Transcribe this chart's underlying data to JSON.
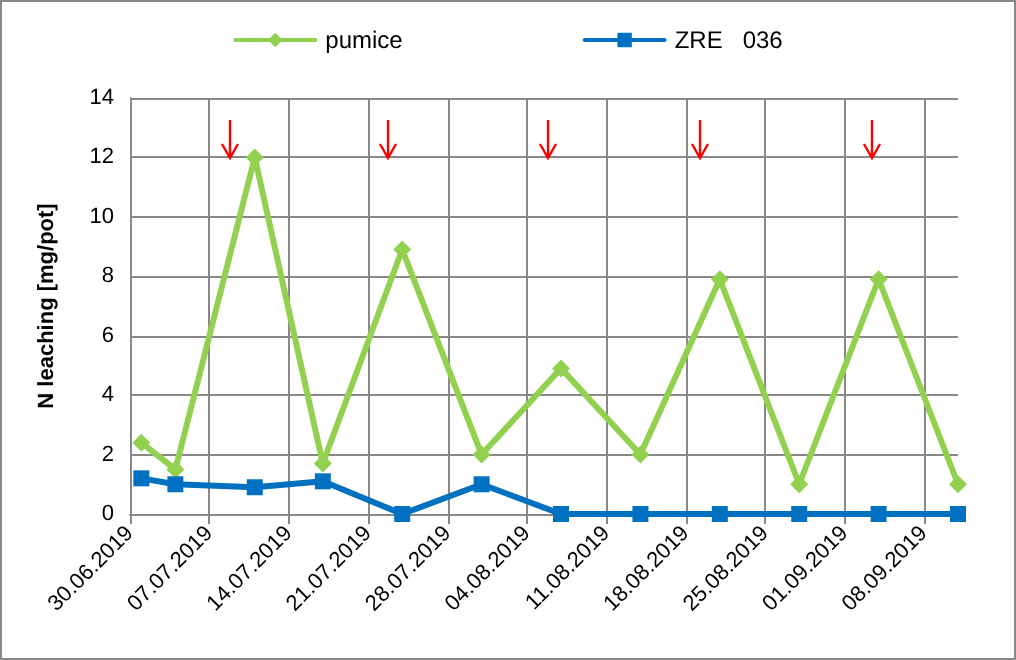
{
  "chart_data": {
    "type": "line",
    "ylabel": "N leaching [mg/pot]",
    "x": [
      "2019-07-01",
      "2019-07-04",
      "2019-07-11",
      "2019-07-17",
      "2019-07-24",
      "2019-07-31",
      "2019-08-07",
      "2019-08-14",
      "2019-08-21",
      "2019-08-28",
      "2019-09-04",
      "2019-09-11"
    ],
    "series": [
      {
        "name": "pumice",
        "color": "#92d050",
        "marker": "diamond",
        "values": [
          2.4,
          1.5,
          12.0,
          1.7,
          8.9,
          2.0,
          4.9,
          2.0,
          7.9,
          1.0,
          7.9,
          1.0
        ]
      },
      {
        "name": "ZRE   036",
        "color": "#0070c0",
        "marker": "square",
        "values": [
          1.2,
          1.0,
          0.9,
          1.1,
          0,
          1.0,
          0,
          0,
          0,
          0,
          0,
          0
        ]
      }
    ],
    "xlim": [
      "2019-06-30",
      "2019-09-11"
    ],
    "xticks": [
      {
        "value": "2019-06-30",
        "label": "30.06.2019"
      },
      {
        "value": "2019-07-07",
        "label": "07.07.2019"
      },
      {
        "value": "2019-07-14",
        "label": "14.07.2019"
      },
      {
        "value": "2019-07-21",
        "label": "21.07.2019"
      },
      {
        "value": "2019-07-28",
        "label": "28.07.2019"
      },
      {
        "value": "2019-08-04",
        "label": "04.08.2019"
      },
      {
        "value": "2019-08-11",
        "label": "11.08.2019"
      },
      {
        "value": "2019-08-18",
        "label": "18.08.2019"
      },
      {
        "value": "2019-08-25",
        "label": "25.08.2019"
      },
      {
        "value": "2019-09-01",
        "label": "01.09.2019"
      },
      {
        "value": "2019-09-08",
        "label": "08.09.2019"
      }
    ],
    "ylim": [
      0,
      14
    ],
    "yticks": [
      0,
      2,
      4,
      6,
      8,
      10,
      12,
      14
    ],
    "grid": true,
    "legend": "top",
    "line_style": "solid"
  }
}
